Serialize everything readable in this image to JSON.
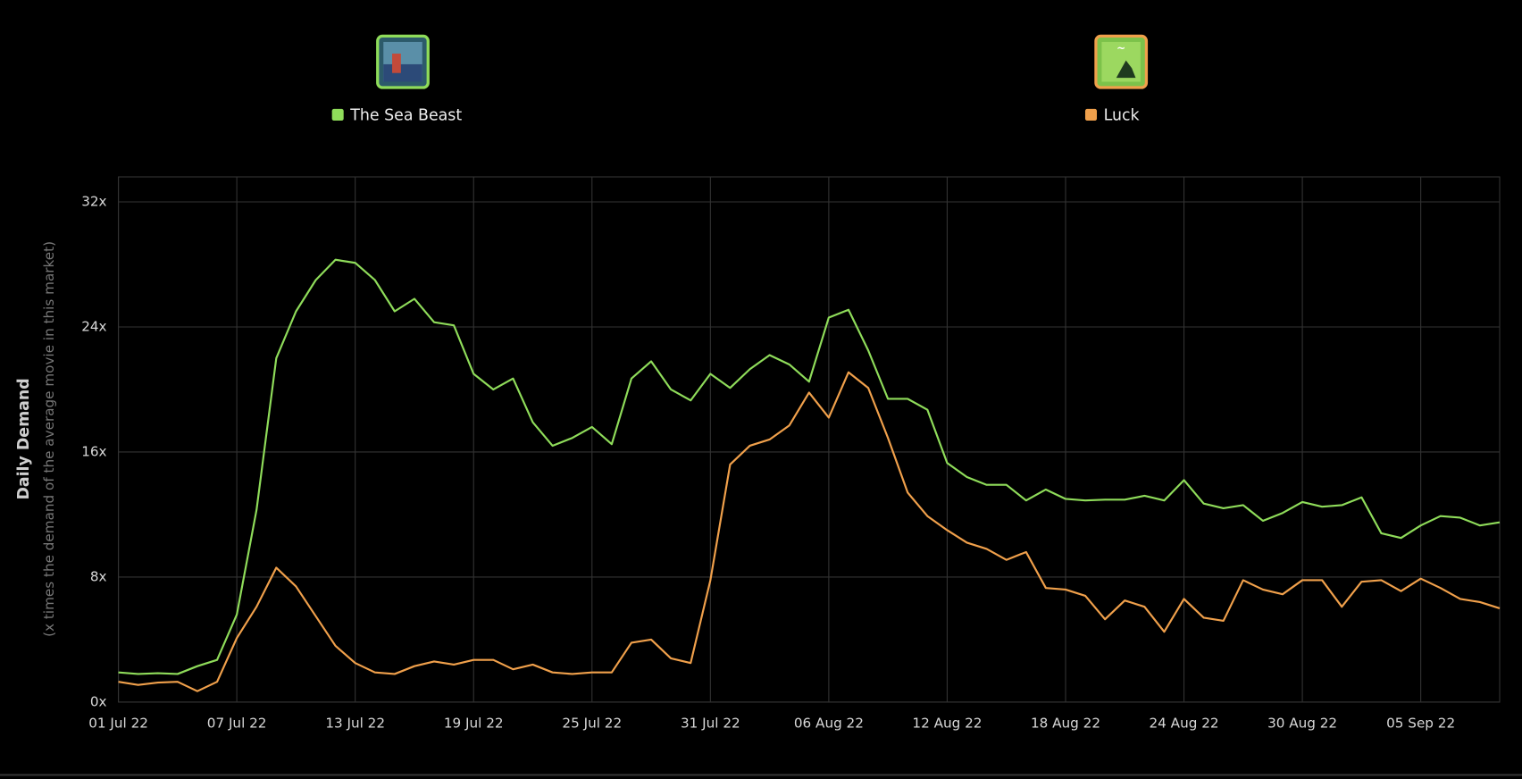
{
  "chart_data": {
    "type": "line",
    "axis_label_y": "Daily Demand",
    "axis_sublabel_y": "(x times the demand of the average movie in this market)",
    "x": [
      "2022-07-01",
      "2022-07-02",
      "2022-07-03",
      "2022-07-04",
      "2022-07-05",
      "2022-07-06",
      "2022-07-07",
      "2022-07-08",
      "2022-07-09",
      "2022-07-10",
      "2022-07-11",
      "2022-07-12",
      "2022-07-13",
      "2022-07-14",
      "2022-07-15",
      "2022-07-16",
      "2022-07-17",
      "2022-07-18",
      "2022-07-19",
      "2022-07-20",
      "2022-07-21",
      "2022-07-22",
      "2022-07-23",
      "2022-07-24",
      "2022-07-25",
      "2022-07-26",
      "2022-07-27",
      "2022-07-28",
      "2022-07-29",
      "2022-07-30",
      "2022-07-31",
      "2022-08-01",
      "2022-08-02",
      "2022-08-03",
      "2022-08-04",
      "2022-08-05",
      "2022-08-06",
      "2022-08-07",
      "2022-08-08",
      "2022-08-09",
      "2022-08-10",
      "2022-08-11",
      "2022-08-12",
      "2022-08-13",
      "2022-08-14",
      "2022-08-15",
      "2022-08-16",
      "2022-08-17",
      "2022-08-18",
      "2022-08-19",
      "2022-08-20",
      "2022-08-21",
      "2022-08-22",
      "2022-08-23",
      "2022-08-24",
      "2022-08-25",
      "2022-08-26",
      "2022-08-27",
      "2022-08-28",
      "2022-08-29",
      "2022-08-30",
      "2022-08-31",
      "2022-09-01",
      "2022-09-02",
      "2022-09-03",
      "2022-09-04",
      "2022-09-05",
      "2022-09-06",
      "2022-09-07",
      "2022-09-08",
      "2022-09-09"
    ],
    "series": [
      {
        "name": "The Sea Beast",
        "color": "#8fdc5a",
        "values": [
          1.9,
          1.8,
          1.85,
          1.8,
          2.3,
          2.7,
          5.6,
          12.3,
          22.0,
          25.0,
          27.0,
          28.3,
          28.1,
          27.0,
          25.0,
          25.8,
          24.3,
          24.1,
          21.0,
          20.0,
          20.7,
          17.9,
          16.4,
          16.9,
          17.6,
          16.5,
          20.7,
          21.8,
          20.0,
          19.3,
          21.0,
          20.1,
          21.3,
          22.2,
          21.6,
          20.5,
          24.6,
          25.1,
          22.5,
          19.4,
          19.4,
          18.7,
          15.3,
          14.4,
          13.9,
          13.9,
          12.9,
          13.6,
          13.0,
          12.9,
          12.95,
          12.95,
          13.2,
          12.9,
          14.2,
          12.7,
          12.4,
          12.6,
          11.6,
          12.1,
          12.8,
          12.5,
          12.6,
          13.1,
          10.8,
          10.5,
          11.3,
          11.9,
          11.8,
          11.3,
          11.5
        ]
      },
      {
        "name": "Luck",
        "color": "#f0a04b",
        "values": [
          1.3,
          1.1,
          1.25,
          1.3,
          0.7,
          1.3,
          4.1,
          6.1,
          8.6,
          7.4,
          5.5,
          3.6,
          2.5,
          1.9,
          1.8,
          2.3,
          2.6,
          2.4,
          2.7,
          2.7,
          2.1,
          2.4,
          1.9,
          1.8,
          1.9,
          1.9,
          3.8,
          4.0,
          2.8,
          2.5,
          7.8,
          15.2,
          16.4,
          16.8,
          17.7,
          19.8,
          18.2,
          21.1,
          20.1,
          16.9,
          13.4,
          11.9,
          11.0,
          10.2,
          9.8,
          9.1,
          9.6,
          7.3,
          7.2,
          6.8,
          5.3,
          6.5,
          6.1,
          4.5,
          6.6,
          5.4,
          5.2,
          7.8,
          7.2,
          6.9,
          7.8,
          7.8,
          6.1,
          7.7,
          7.8,
          7.1,
          7.9,
          7.3,
          6.6,
          6.4,
          6.0
        ]
      }
    ],
    "xlim": [
      "2022-07-01",
      "2022-09-09"
    ],
    "xticks": [
      {
        "value": "2022-07-01",
        "label": "01 Jul 22"
      },
      {
        "value": "2022-07-07",
        "label": "07 Jul 22"
      },
      {
        "value": "2022-07-13",
        "label": "13 Jul 22"
      },
      {
        "value": "2022-07-19",
        "label": "19 Jul 22"
      },
      {
        "value": "2022-07-25",
        "label": "25 Jul 22"
      },
      {
        "value": "2022-07-31",
        "label": "31 Jul 22"
      },
      {
        "value": "2022-08-06",
        "label": "06 Aug 22"
      },
      {
        "value": "2022-08-12",
        "label": "12 Aug 22"
      },
      {
        "value": "2022-08-18",
        "label": "18 Aug 22"
      },
      {
        "value": "2022-08-24",
        "label": "24 Aug 22"
      },
      {
        "value": "2022-08-30",
        "label": "30 Aug 22"
      },
      {
        "value": "2022-09-05",
        "label": "05 Sep 22"
      }
    ],
    "ylim": [
      0,
      33.6
    ],
    "yticks": [
      {
        "value": 0,
        "label": "0x"
      },
      {
        "value": 8,
        "label": "8x"
      },
      {
        "value": 16,
        "label": "16x"
      },
      {
        "value": 24,
        "label": "24x"
      },
      {
        "value": 32,
        "label": "32x"
      }
    ],
    "grid": true,
    "legend": "top"
  }
}
